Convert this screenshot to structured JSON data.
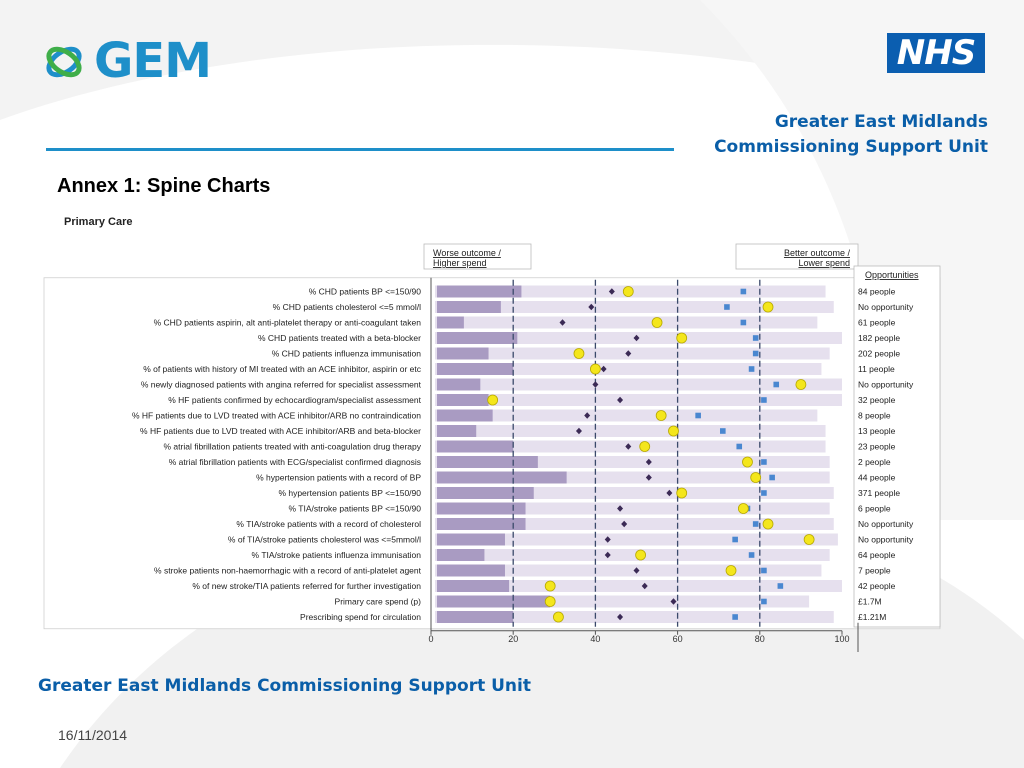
{
  "header": {
    "org_line1": "Greater East Midlands",
    "org_line2": "Commissioning Support Unit",
    "nhs": "NHS",
    "gem": "GEM"
  },
  "title": "Annex 1: Spine Charts",
  "section": "Primary Care",
  "legend": {
    "worse_line1": "Worse outcome /",
    "worse_line2": "Higher spend",
    "better_line1": "Better outcome /",
    "better_line2": "Lower spend",
    "opportunities_header": "Opportunities"
  },
  "footer": {
    "org": "Greater East Midlands Commissioning Support Unit",
    "date": "16/11/2014"
  },
  "colors": {
    "accent": "#1e8fc9",
    "brand_dark": "#0a5ea8",
    "spine_bar": "#e6e0ee",
    "practice_bar": "#a99bc2",
    "diamond": "#3b2a55",
    "circle": "#f4e61c",
    "square": "#4a87d0"
  },
  "chart_data": {
    "type": "spine",
    "xlim": [
      0,
      100
    ],
    "ticks": [
      0,
      20,
      40,
      60,
      80,
      100
    ],
    "dashed_lines": [
      20,
      40,
      60,
      80
    ],
    "rows": [
      {
        "label": "% CHD patients BP <=150/90",
        "bar": 22,
        "range_end": 96,
        "diamond": 44,
        "circle": 48,
        "square": 76,
        "opportunity": "84  people"
      },
      {
        "label": "% CHD patients cholesterol <=5 mmol/l",
        "bar": 17,
        "range_end": 98,
        "diamond": 39,
        "circle": 82,
        "square": 72,
        "opportunity": "No opportunity"
      },
      {
        "label": "% CHD patients aspirin, alt anti-platelet therapy or anti-coagulant taken",
        "bar": 8,
        "range_end": 94,
        "diamond": 32,
        "circle": 55,
        "square": 76,
        "opportunity": "61  people"
      },
      {
        "label": "% CHD patients treated with a beta-blocker",
        "bar": 21,
        "range_end": 100,
        "diamond": 50,
        "circle": 61,
        "square": 79,
        "opportunity": "182  people"
      },
      {
        "label": "% CHD patients influenza immunisation",
        "bar": 14,
        "range_end": 97,
        "diamond": 48,
        "circle": 36,
        "square": 79,
        "opportunity": "202  people"
      },
      {
        "label": "% of patients with history of MI treated with an ACE inhibitor, aspirin or etc",
        "bar": 20,
        "range_end": 95,
        "diamond": 42,
        "circle": 40,
        "square": 78,
        "opportunity": "11  people"
      },
      {
        "label": "% newly diagnosed patients with angina referred for specialist assessment",
        "bar": 12,
        "range_end": 100,
        "diamond": 40,
        "circle": 90,
        "square": 84,
        "opportunity": "No opportunity"
      },
      {
        "label": "% HF patients confirmed by echocardiogram/specialist assessment",
        "bar": 14,
        "range_end": 100,
        "diamond": 46,
        "circle": 15,
        "square": 81,
        "opportunity": "32  people"
      },
      {
        "label": "% HF patients due to LVD treated with ACE inhibitor/ARB no contraindication",
        "bar": 15,
        "range_end": 94,
        "diamond": 38,
        "circle": 56,
        "square": 65,
        "opportunity": "8  people"
      },
      {
        "label": "% HF patients due to LVD treated with ACE inhibitor/ARB and beta-blocker",
        "bar": 11,
        "range_end": 96,
        "diamond": 36,
        "circle": 59,
        "square": 71,
        "opportunity": "13  people"
      },
      {
        "label": "% atrial fibrillation patients treated with anti-coagulation drug therapy",
        "bar": 20,
        "range_end": 96,
        "diamond": 48,
        "circle": 52,
        "square": 75,
        "opportunity": "23  people"
      },
      {
        "label": "% atrial fibrillation patients with ECG/specialist confirmed diagnosis",
        "bar": 26,
        "range_end": 97,
        "diamond": 53,
        "circle": 77,
        "square": 81,
        "opportunity": "2  people"
      },
      {
        "label": "% hypertension patients with a record of BP",
        "bar": 33,
        "range_end": 97,
        "diamond": 53,
        "circle": 79,
        "square": 83,
        "opportunity": "44  people"
      },
      {
        "label": "% hypertension patients BP <=150/90",
        "bar": 25,
        "range_end": 98,
        "diamond": 58,
        "circle": 61,
        "square": 81,
        "opportunity": "371  people"
      },
      {
        "label": "% TIA/stroke patients BP <=150/90",
        "bar": 23,
        "range_end": 97,
        "diamond": 46,
        "circle": 76,
        "square": 77,
        "opportunity": "6  people"
      },
      {
        "label": "% TIA/stroke patients with a record of cholesterol",
        "bar": 23,
        "range_end": 98,
        "diamond": 47,
        "circle": 82,
        "square": 79,
        "opportunity": "No opportunity"
      },
      {
        "label": "% of TIA/stroke patients cholesterol was <=5mmol/l",
        "bar": 18,
        "range_end": 99,
        "diamond": 43,
        "circle": 92,
        "square": 74,
        "opportunity": "No opportunity"
      },
      {
        "label": "% TIA/stroke patients influenza immunisation",
        "bar": 13,
        "range_end": 97,
        "diamond": 43,
        "circle": 51,
        "square": 78,
        "opportunity": "64  people"
      },
      {
        "label": "% stroke patients non-haemorrhagic with a record of anti-platelet agent",
        "bar": 18,
        "range_end": 95,
        "diamond": 50,
        "circle": 73,
        "square": 81,
        "opportunity": "7  people"
      },
      {
        "label": "% of new stroke/TIA patients referred for further investigation",
        "bar": 19,
        "range_end": 100,
        "diamond": 52,
        "circle": 29,
        "square": 85,
        "opportunity": "42  people"
      },
      {
        "label": "Primary care spend (p)",
        "bar": 29,
        "range_end": 92,
        "diamond": 59,
        "circle": 29,
        "square": 81,
        "opportunity": "£1.7M"
      },
      {
        "label": "Prescribing spend for circulation",
        "bar": 20,
        "range_end": 98,
        "diamond": 46,
        "circle": 31,
        "square": 74,
        "opportunity": "£1.21M"
      }
    ]
  }
}
